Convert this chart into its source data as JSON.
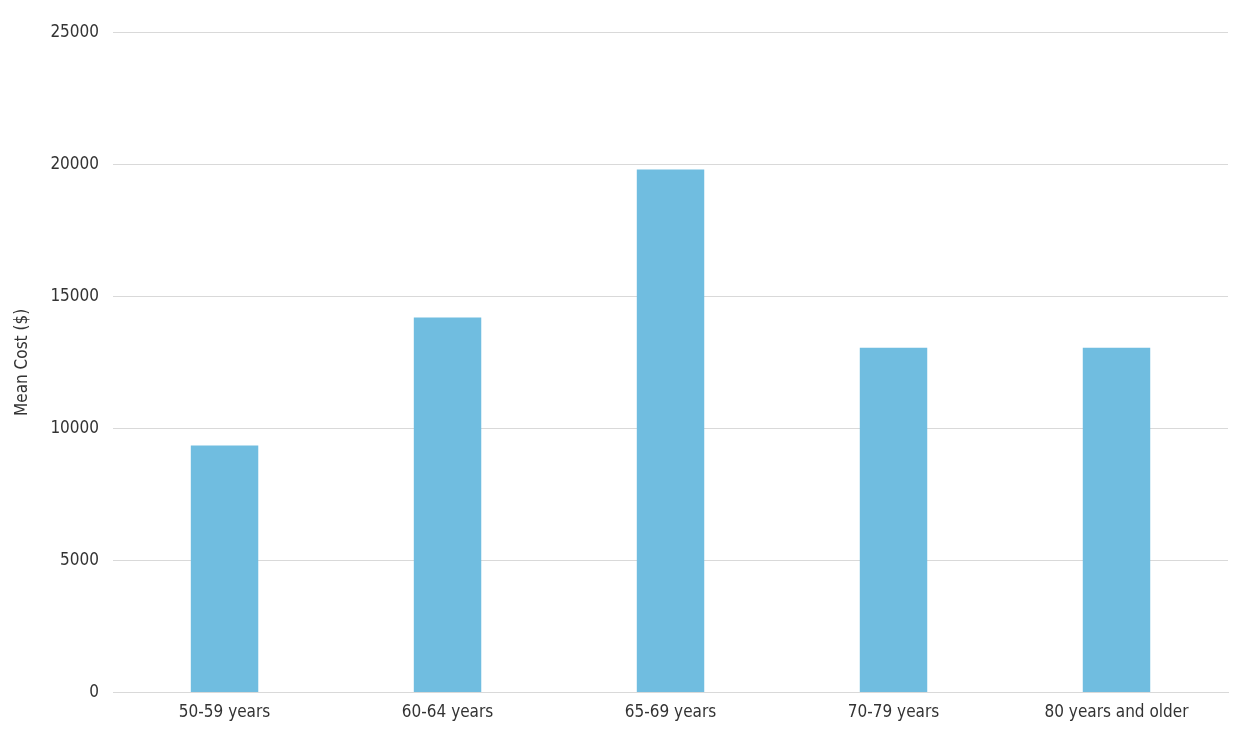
{
  "chart_data": {
    "type": "bar",
    "ylabel": "Mean Cost ($)",
    "categories": [
      "50-59 years",
      "60-64 years",
      "65-69 years",
      "70-79 years",
      "80 years and older"
    ],
    "values": [
      9350,
      14200,
      19800,
      13050,
      13050
    ],
    "color": "#70bde0",
    "ylim": [
      0,
      25000
    ],
    "yticks": [
      0,
      5000,
      10000,
      15000,
      20000,
      25000
    ],
    "grid": "y",
    "legend": false
  }
}
